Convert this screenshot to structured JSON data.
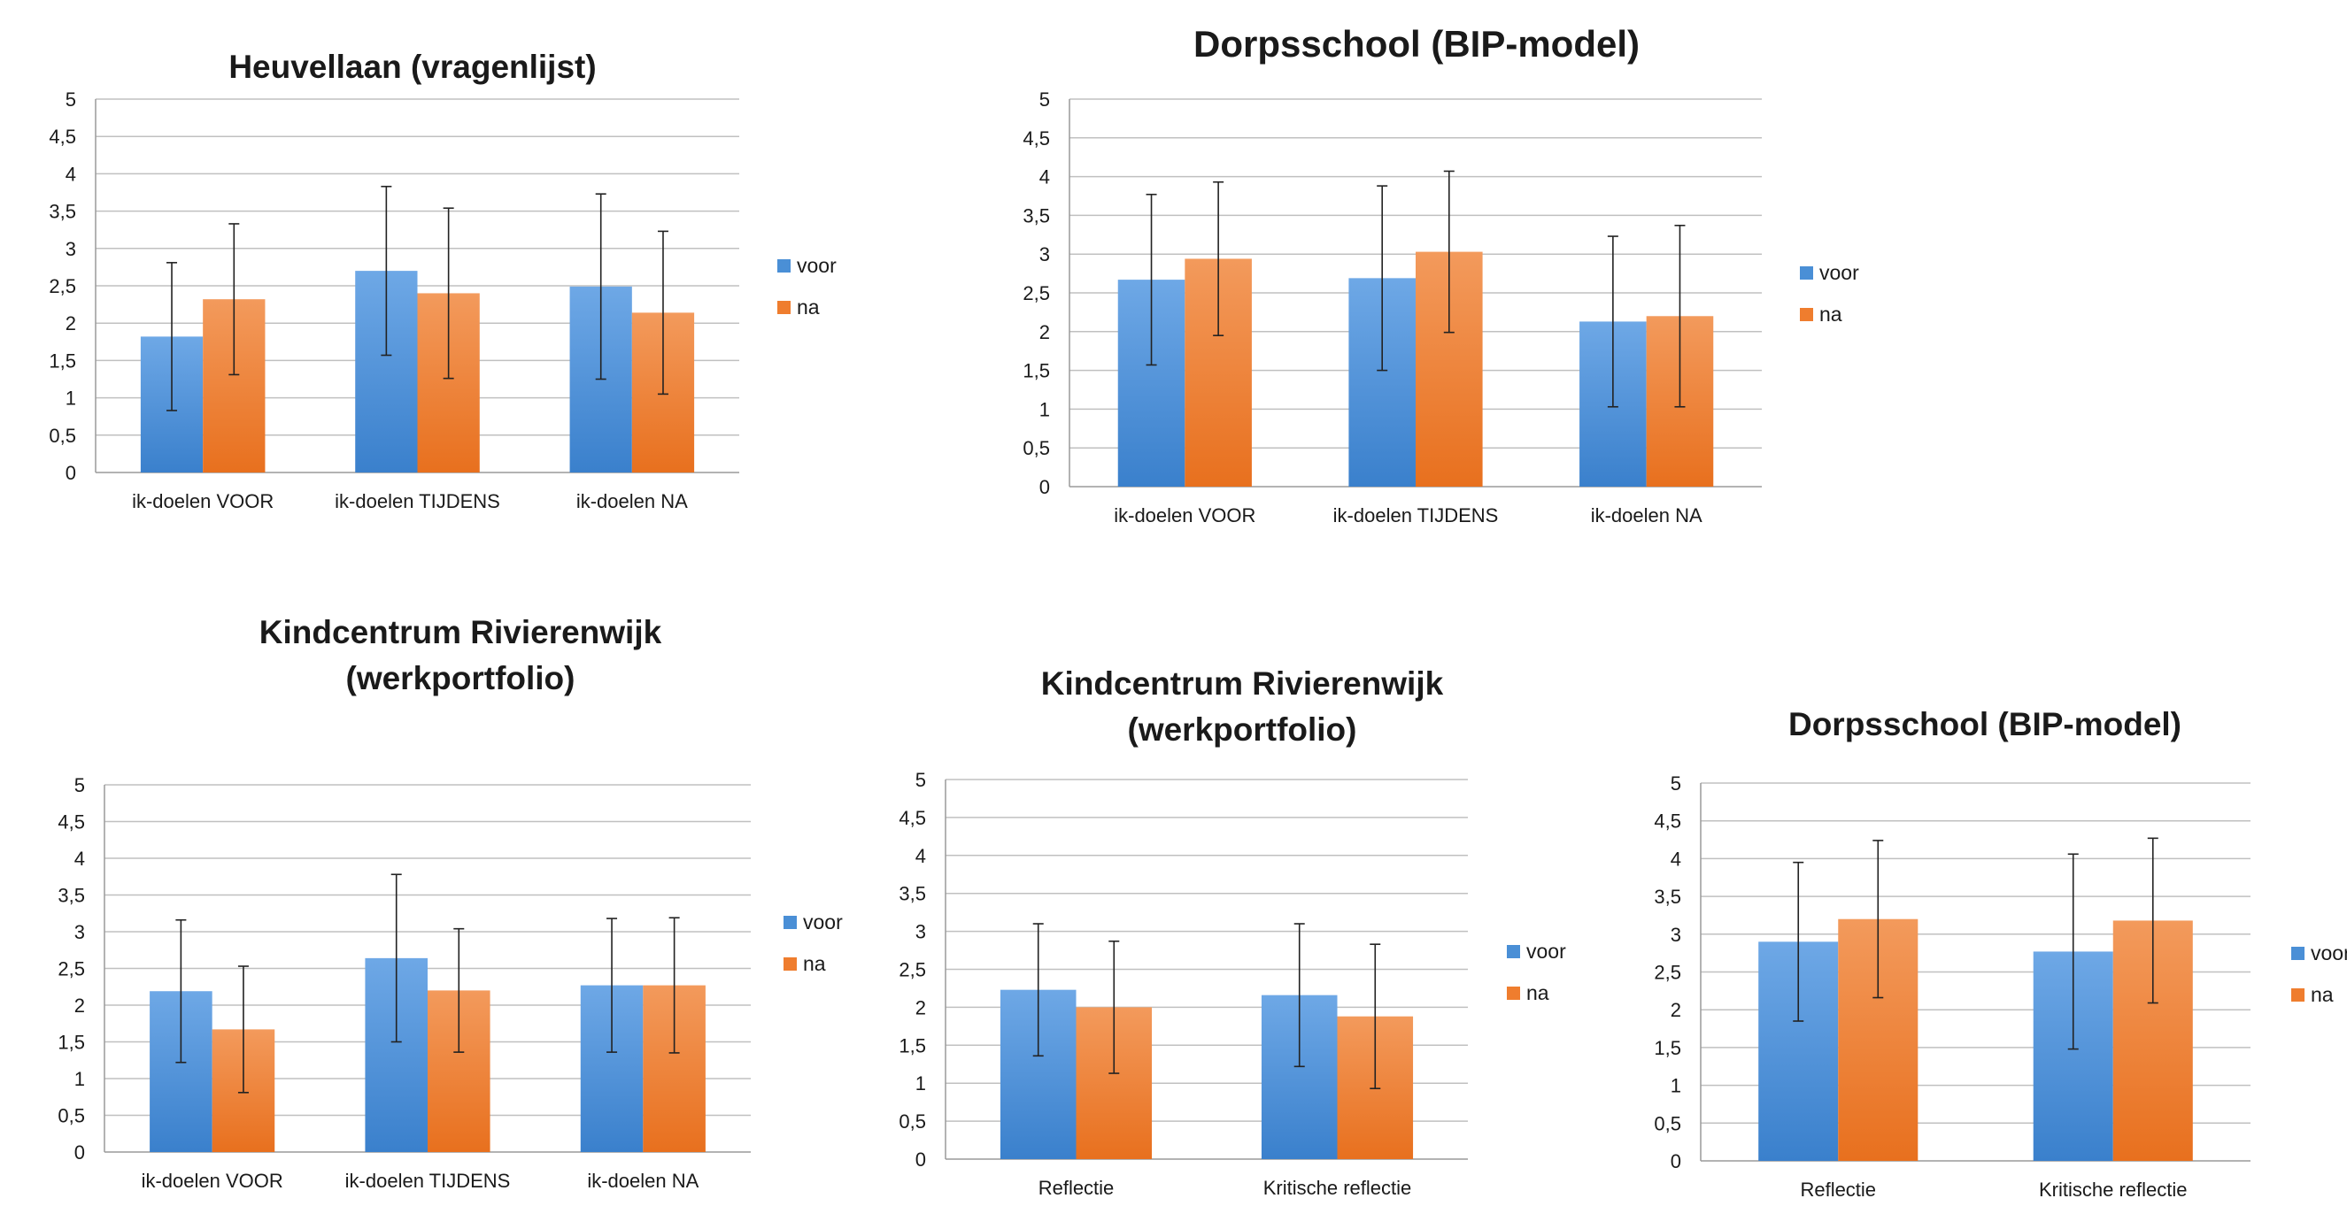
{
  "colors": {
    "voor": "#4a8fd6",
    "na": "#ef7d2e",
    "grid": "#c0c0c0",
    "axis": "#9a9a9a"
  },
  "chart_data": [
    {
      "type": "bar",
      "title": "Heuvellaan (vragenlijst)",
      "categories": [
        "ik-doelen VOOR",
        "ik-doelen TIJDENS",
        "ik-doelen NA"
      ],
      "series": [
        {
          "name": "voor",
          "values": [
            1.82,
            2.7,
            2.49
          ],
          "errors": [
            0.99,
            1.13,
            1.24
          ]
        },
        {
          "name": "na",
          "values": [
            2.32,
            2.4,
            2.14
          ],
          "errors": [
            1.01,
            1.14,
            1.09
          ]
        }
      ],
      "ylim": [
        0,
        5
      ],
      "yticks": [
        "0",
        "0,5",
        "1",
        "1,5",
        "2",
        "2,5",
        "3",
        "3,5",
        "4",
        "4,5",
        "5"
      ],
      "grid": true,
      "legend": "right"
    },
    {
      "type": "bar",
      "title": "Dorpsschool (BIP-model)",
      "categories": [
        "ik-doelen VOOR",
        "ik-doelen TIJDENS",
        "ik-doelen NA"
      ],
      "series": [
        {
          "name": "voor",
          "values": [
            2.67,
            2.69,
            2.13
          ],
          "errors": [
            1.1,
            1.19,
            1.1
          ]
        },
        {
          "name": "na",
          "values": [
            2.94,
            3.03,
            2.2
          ],
          "errors": [
            0.99,
            1.04,
            1.17
          ]
        }
      ],
      "ylim": [
        0,
        5
      ],
      "yticks": [
        "0",
        "0,5",
        "1",
        "1,5",
        "2",
        "2,5",
        "3",
        "3,5",
        "4",
        "4,5",
        "5"
      ],
      "grid": true,
      "legend": "right"
    },
    {
      "type": "bar",
      "title": "Kindcentrum Rivierenwijk (werkportfolio)",
      "title_lines": [
        "Kindcentrum Rivierenwijk",
        "(werkportfolio)"
      ],
      "categories": [
        "ik-doelen VOOR",
        "ik-doelen TIJDENS",
        "ik-doelen NA"
      ],
      "series": [
        {
          "name": "voor",
          "values": [
            2.19,
            2.64,
            2.27
          ],
          "errors": [
            0.97,
            1.14,
            0.91
          ]
        },
        {
          "name": "na",
          "values": [
            1.67,
            2.2,
            2.27
          ],
          "errors": [
            0.86,
            0.84,
            0.92
          ]
        }
      ],
      "ylim": [
        0,
        5
      ],
      "yticks": [
        "0",
        "0,5",
        "1",
        "1,5",
        "2",
        "2,5",
        "3",
        "3,5",
        "4",
        "4,5",
        "5"
      ],
      "grid": true,
      "legend": "right"
    },
    {
      "type": "bar",
      "title": "Kindcentrum Rivierenwijk (werkportfolio)",
      "title_lines": [
        "Kindcentrum Rivierenwijk",
        "(werkportfolio)"
      ],
      "categories": [
        "Reflectie",
        "Kritische reflectie"
      ],
      "series": [
        {
          "name": "voor",
          "values": [
            2.23,
            2.16
          ],
          "errors": [
            0.87,
            0.94
          ]
        },
        {
          "name": "na",
          "values": [
            2.0,
            1.88
          ],
          "errors": [
            0.87,
            0.95
          ]
        }
      ],
      "ylim": [
        0,
        5
      ],
      "yticks": [
        "0",
        "0,5",
        "1",
        "1,5",
        "2",
        "2,5",
        "3",
        "3,5",
        "4",
        "4,5",
        "5"
      ],
      "grid": true,
      "legend": "right"
    },
    {
      "type": "bar",
      "title": "Dorpsschool (BIP-model)",
      "categories": [
        "Reflectie",
        "Kritische reflectie"
      ],
      "series": [
        {
          "name": "voor",
          "values": [
            2.9,
            2.77
          ],
          "errors": [
            1.05,
            1.29
          ]
        },
        {
          "name": "na",
          "values": [
            3.2,
            3.18
          ],
          "errors": [
            1.04,
            1.09
          ]
        }
      ],
      "ylim": [
        0,
        5
      ],
      "yticks": [
        "0",
        "0,5",
        "1",
        "1,5",
        "2",
        "2,5",
        "3",
        "3,5",
        "4",
        "4,5",
        "5"
      ],
      "grid": true,
      "legend": "right"
    }
  ]
}
